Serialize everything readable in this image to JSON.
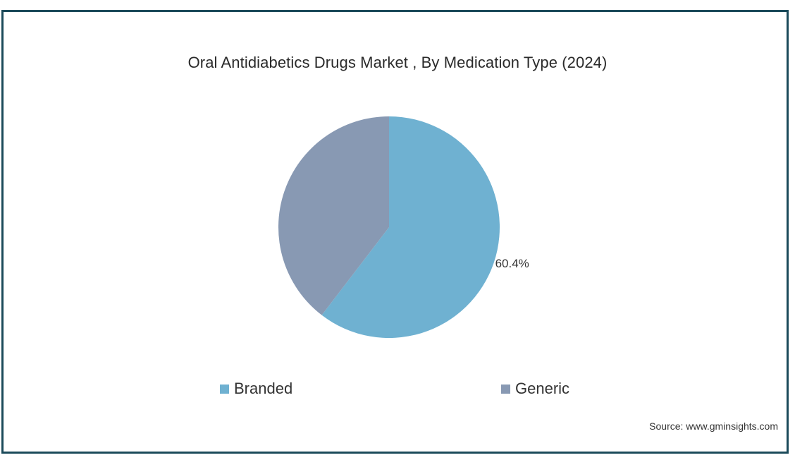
{
  "chart_data": {
    "type": "pie",
    "title": "Oral Antidiabetics Drugs Market , By Medication Type (2024)",
    "categories": [
      "Branded",
      "Generic"
    ],
    "values": [
      60.4,
      39.6
    ],
    "data_labels": [
      "60.4%",
      ""
    ],
    "colors": [
      "#6fb1d1",
      "#8899b3"
    ],
    "legend_position": "bottom"
  },
  "source": "Source: www.gminsights.com"
}
